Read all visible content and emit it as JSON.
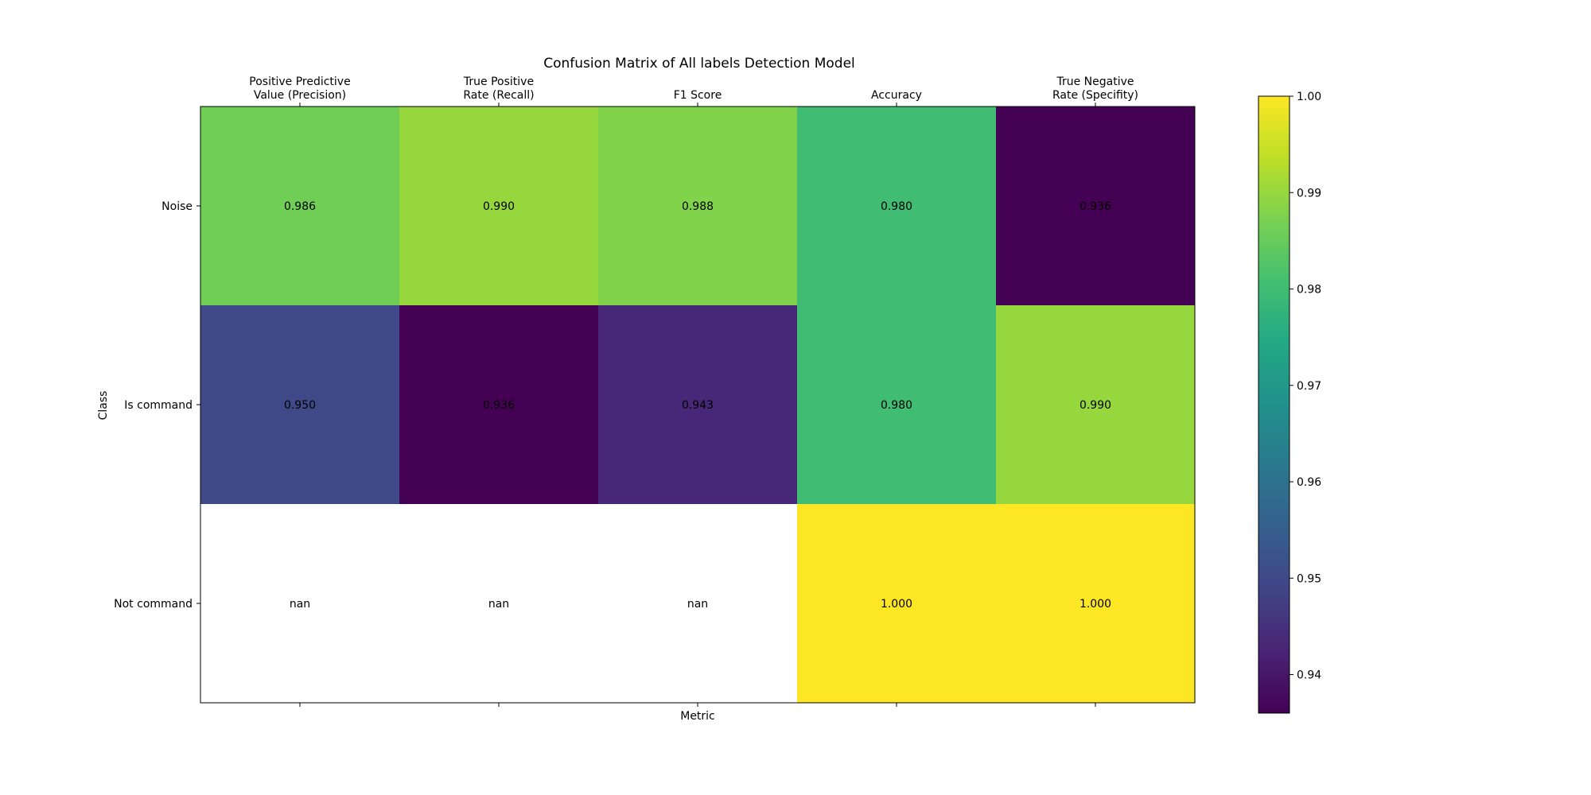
{
  "chart_data": {
    "type": "heatmap",
    "title": "Confusion Matrix of All labels Detection Model",
    "xlabel": "Metric",
    "ylabel": "Class",
    "x_categories": [
      [
        "Positive Predictive",
        "Value (Precision)"
      ],
      [
        "True Positive",
        "Rate (Recall)"
      ],
      [
        "F1 Score"
      ],
      [
        "Accuracy"
      ],
      [
        "True Negative",
        "Rate (Specifity)"
      ]
    ],
    "y_categories": [
      "Noise",
      "Is command",
      "Not command"
    ],
    "values": [
      [
        0.986,
        0.99,
        0.988,
        0.98,
        0.936
      ],
      [
        0.95,
        0.936,
        0.943,
        0.98,
        0.99
      ],
      [
        null,
        null,
        null,
        1.0,
        1.0
      ]
    ],
    "cell_labels": [
      [
        "0.986",
        "0.990",
        "0.988",
        "0.980",
        "0.936"
      ],
      [
        "0.950",
        "0.936",
        "0.943",
        "0.980",
        "0.990"
      ],
      [
        "nan",
        "nan",
        "nan",
        "1.000",
        "1.000"
      ]
    ],
    "colormap": "viridis",
    "vmin": 0.936,
    "vmax": 1.0,
    "colorbar_ticks": [
      0.94,
      0.95,
      0.96,
      0.97,
      0.98,
      0.99,
      1.0
    ],
    "colorbar_tick_labels": [
      "0.94",
      "0.95",
      "0.96",
      "0.97",
      "0.98",
      "0.99",
      "1.00"
    ],
    "nan_color": "#ffffff",
    "x_tick_position": "top",
    "grid": false
  }
}
